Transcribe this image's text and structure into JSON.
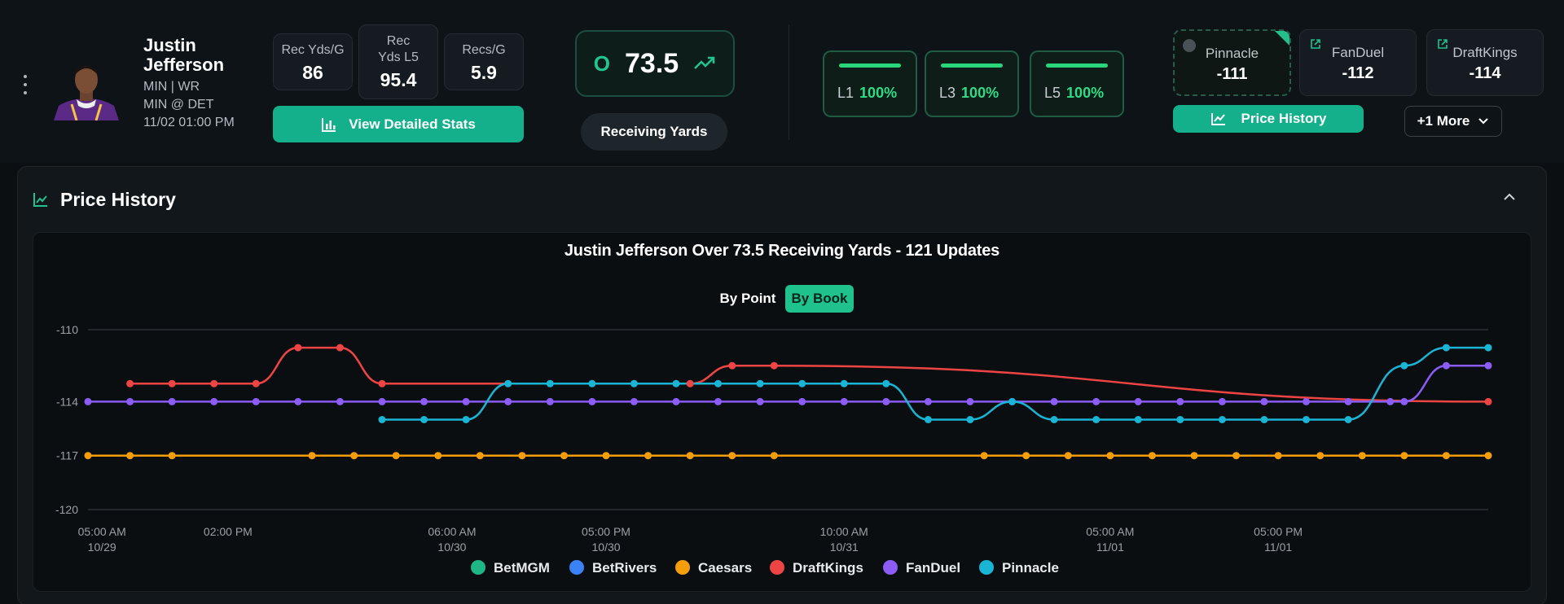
{
  "player": {
    "first_name": "Justin",
    "last_name": "Jefferson",
    "team_pos": "MIN | WR",
    "matchup": "MIN @ DET",
    "game_time": "11/02 01:00 PM"
  },
  "stats": [
    {
      "label": "Rec Yds/G",
      "value": "86"
    },
    {
      "label": "Rec Yds L5",
      "value": "95.4"
    },
    {
      "label": "Recs/G",
      "value": "5.9"
    }
  ],
  "view_stats_label": "View Detailed Stats",
  "prop": {
    "side": "O",
    "line": "73.5",
    "market": "Receiving Yards"
  },
  "hit_rates": [
    {
      "label": "L1",
      "value": "100%"
    },
    {
      "label": "L3",
      "value": "100%"
    },
    {
      "label": "L5",
      "value": "100%"
    }
  ],
  "books": [
    {
      "name": "Pinnacle",
      "odds": "-111"
    },
    {
      "name": "FanDuel",
      "odds": "-112"
    },
    {
      "name": "DraftKings",
      "odds": "-114"
    }
  ],
  "price_history_button": "Price History",
  "more_button": "+1 More",
  "panel": {
    "title": "Price History"
  },
  "toggle": {
    "by_point": "By Point",
    "by_book": "By Book"
  },
  "colors": {
    "accent": "#14b08b",
    "green": "#29d67a"
  },
  "chart_data": {
    "type": "line",
    "title": "Justin Jefferson Over 73.5 Receiving Yards - 121 Updates",
    "y_ticks": [
      "-110",
      "-114",
      "-117",
      "-120"
    ],
    "ylim": [
      -120,
      -110
    ],
    "x_ticks": [
      {
        "t": 0,
        "time": "05:00 AM",
        "date": "10/29"
      },
      {
        "t": 9,
        "time": "02:00 PM",
        "date": ""
      },
      {
        "t": 25,
        "time": "06:00 AM",
        "date": "10/30"
      },
      {
        "t": 36,
        "time": "05:00 PM",
        "date": "10/30"
      },
      {
        "t": 53,
        "time": "10:00 AM",
        "date": "10/31"
      },
      {
        "t": 72,
        "time": "05:00 AM",
        "date": "11/01"
      },
      {
        "t": 84,
        "time": "05:00 PM",
        "date": "11/01"
      }
    ],
    "xlim": [
      -1,
      99
    ],
    "legend": [
      "BetMGM",
      "BetRivers",
      "Caesars",
      "DraftKings",
      "FanDuel",
      "Pinnacle"
    ],
    "series": [
      {
        "name": "BetMGM",
        "color": "#1fb584",
        "points": []
      },
      {
        "name": "BetRivers",
        "color": "#3b82f6",
        "points": []
      },
      {
        "name": "Caesars",
        "color": "#f59e0b",
        "points": [
          [
            -1,
            -117
          ],
          [
            2,
            -117
          ],
          [
            5,
            -117
          ],
          [
            15,
            -117
          ],
          [
            18,
            -117
          ],
          [
            21,
            -117
          ],
          [
            24,
            -117
          ],
          [
            27,
            -117
          ],
          [
            30,
            -117
          ],
          [
            33,
            -117
          ],
          [
            36,
            -117
          ],
          [
            39,
            -117
          ],
          [
            42,
            -117
          ],
          [
            45,
            -117
          ],
          [
            48,
            -117
          ],
          [
            63,
            -117
          ],
          [
            66,
            -117
          ],
          [
            69,
            -117
          ],
          [
            72,
            -117
          ],
          [
            75,
            -117
          ],
          [
            78,
            -117
          ],
          [
            81,
            -117
          ],
          [
            84,
            -117
          ],
          [
            87,
            -117
          ],
          [
            90,
            -117
          ],
          [
            93,
            -117
          ],
          [
            96,
            -117
          ],
          [
            99,
            -117
          ]
        ]
      },
      {
        "name": "DraftKings",
        "color": "#ef4444",
        "points": [
          [
            2,
            -113
          ],
          [
            5,
            -113
          ],
          [
            8,
            -113
          ],
          [
            11,
            -113
          ],
          [
            14,
            -111
          ],
          [
            17,
            -111
          ],
          [
            20,
            -113
          ],
          [
            42,
            -113
          ],
          [
            45,
            -112
          ],
          [
            48,
            -112
          ],
          [
            99,
            -114
          ]
        ]
      },
      {
        "name": "FanDuel",
        "color": "#8b5cf6",
        "points": [
          [
            -1,
            -114
          ],
          [
            2,
            -114
          ],
          [
            5,
            -114
          ],
          [
            8,
            -114
          ],
          [
            11,
            -114
          ],
          [
            14,
            -114
          ],
          [
            17,
            -114
          ],
          [
            20,
            -114
          ],
          [
            23,
            -114
          ],
          [
            26,
            -114
          ],
          [
            29,
            -114
          ],
          [
            32,
            -114
          ],
          [
            35,
            -114
          ],
          [
            38,
            -114
          ],
          [
            41,
            -114
          ],
          [
            44,
            -114
          ],
          [
            47,
            -114
          ],
          [
            50,
            -114
          ],
          [
            53,
            -114
          ],
          [
            56,
            -114
          ],
          [
            59,
            -114
          ],
          [
            62,
            -114
          ],
          [
            65,
            -114
          ],
          [
            68,
            -114
          ],
          [
            71,
            -114
          ],
          [
            74,
            -114
          ],
          [
            77,
            -114
          ],
          [
            80,
            -114
          ],
          [
            83,
            -114
          ],
          [
            86,
            -114
          ],
          [
            89,
            -114
          ],
          [
            92,
            -114
          ],
          [
            93,
            -114
          ],
          [
            96,
            -112
          ],
          [
            99,
            -112
          ]
        ]
      },
      {
        "name": "Pinnacle",
        "color": "#1ab4d4",
        "points": [
          [
            20,
            -115
          ],
          [
            23,
            -115
          ],
          [
            26,
            -115
          ],
          [
            29,
            -113
          ],
          [
            32,
            -113
          ],
          [
            35,
            -113
          ],
          [
            38,
            -113
          ],
          [
            41,
            -113
          ],
          [
            44,
            -113
          ],
          [
            47,
            -113
          ],
          [
            50,
            -113
          ],
          [
            53,
            -113
          ],
          [
            56,
            -113
          ],
          [
            59,
            -115
          ],
          [
            62,
            -115
          ],
          [
            65,
            -114
          ],
          [
            68,
            -115
          ],
          [
            71,
            -115
          ],
          [
            74,
            -115
          ],
          [
            77,
            -115
          ],
          [
            80,
            -115
          ],
          [
            83,
            -115
          ],
          [
            86,
            -115
          ],
          [
            89,
            -115
          ],
          [
            93,
            -112
          ],
          [
            96,
            -111
          ],
          [
            99,
            -111
          ]
        ]
      }
    ]
  }
}
